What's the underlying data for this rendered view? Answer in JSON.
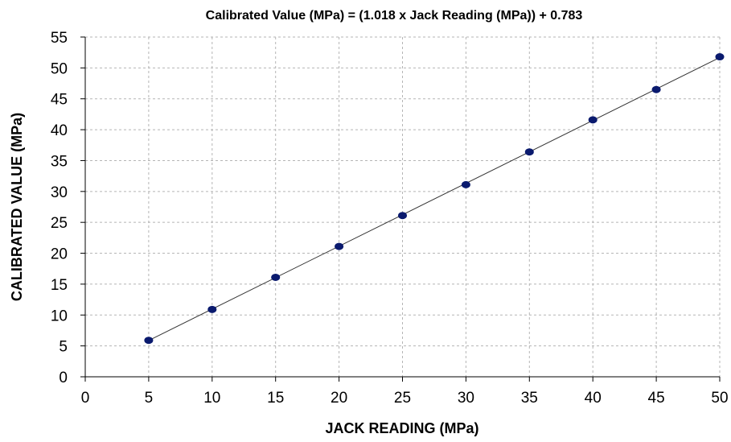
{
  "chart_data": {
    "type": "scatter",
    "title": "Calibrated Value (MPa) = (1.018 x Jack Reading (MPa)) + 0.783",
    "xlabel": "JACK READING (MPa)",
    "ylabel": "CALIBRATED VALUE  (MPa)",
    "xlim": [
      0,
      50
    ],
    "ylim": [
      0,
      55
    ],
    "xticks": [
      0,
      5,
      10,
      15,
      20,
      25,
      30,
      35,
      40,
      45,
      50
    ],
    "yticks": [
      0,
      5,
      10,
      15,
      20,
      25,
      30,
      35,
      40,
      45,
      50,
      55
    ],
    "grid": true,
    "series": [
      {
        "x": [
          5,
          10,
          15,
          20,
          25,
          30,
          35,
          40,
          45,
          50
        ],
        "y": [
          5.9,
          10.9,
          16.1,
          21.1,
          26.1,
          31.1,
          36.4,
          41.6,
          46.5,
          51.8
        ],
        "color": "#0a1a6e"
      }
    ],
    "trendline": {
      "slope": 1.018,
      "intercept": 0.783,
      "x_range": [
        5,
        50
      ],
      "color": "#333333"
    }
  }
}
